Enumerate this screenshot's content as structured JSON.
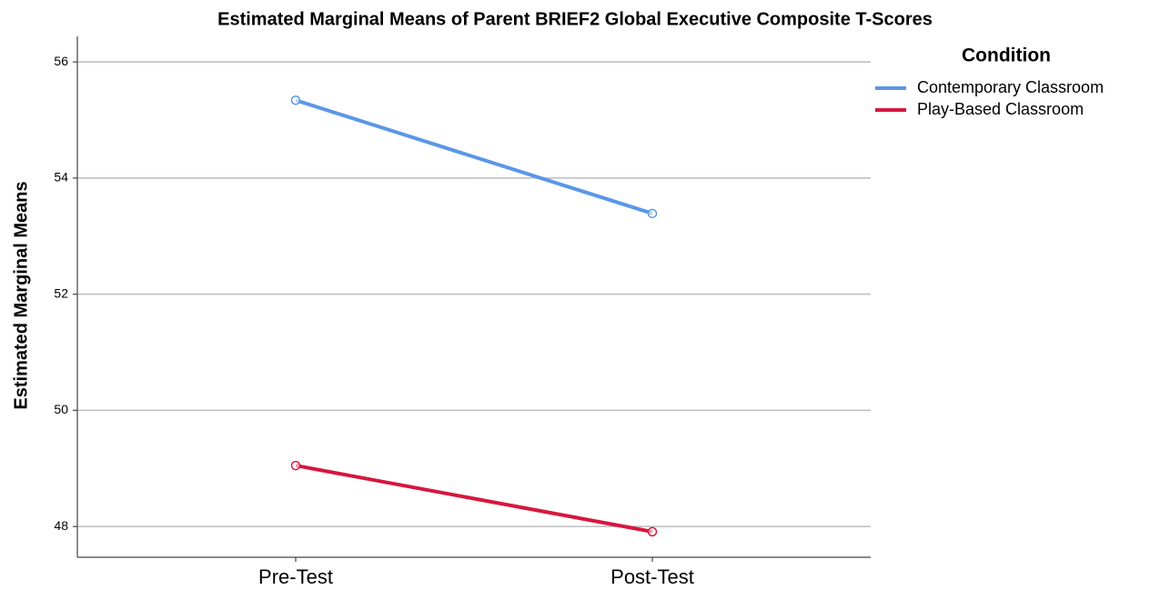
{
  "chart_data": {
    "type": "line",
    "title": "Estimated Marginal Means of Parent BRIEF2 Global Executive Composite T-Scores",
    "y_label": "Estimated Marginal Means",
    "legend_title": "Condition",
    "categories": [
      "Pre-Test",
      "Post-Test"
    ],
    "series": [
      {
        "name": "Contemporary Classroom",
        "color": "#5a97e6",
        "values": [
          55.34,
          53.39
        ]
      },
      {
        "name": "Play-Based Classroom",
        "color": "#d6173e",
        "values": [
          49.05,
          47.91
        ]
      }
    ],
    "ylim": [
      47.47,
      56.44
    ],
    "yticks": [
      48,
      50,
      52,
      54,
      56
    ],
    "grid": true,
    "legend": "right"
  }
}
